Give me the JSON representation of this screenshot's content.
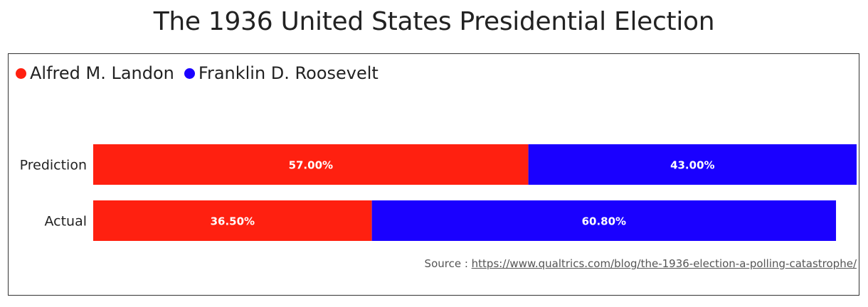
{
  "chart_data": {
    "type": "bar",
    "orientation": "horizontal",
    "stacked": true,
    "title": "The 1936 United States Presidential Election",
    "categories": [
      "Prediction",
      "Actual"
    ],
    "series": [
      {
        "name": "Alfred M. Landon",
        "color": "#ff2010",
        "values": [
          57.0,
          36.5
        ],
        "labels": [
          "57.00%",
          "36.50%"
        ]
      },
      {
        "name": "Franklin D. Roosevelt",
        "color": "#1a00ff",
        "values": [
          43.0,
          60.8
        ],
        "labels": [
          "43.00%",
          "60.80%"
        ]
      }
    ],
    "xlim": [
      0,
      100
    ],
    "grid": false,
    "legend_position": "top-left"
  },
  "source": {
    "prefix": "Source : ",
    "link_text": "https://www.qualtrics.com/blog/the-1936-election-a-polling-catastrophe/"
  }
}
